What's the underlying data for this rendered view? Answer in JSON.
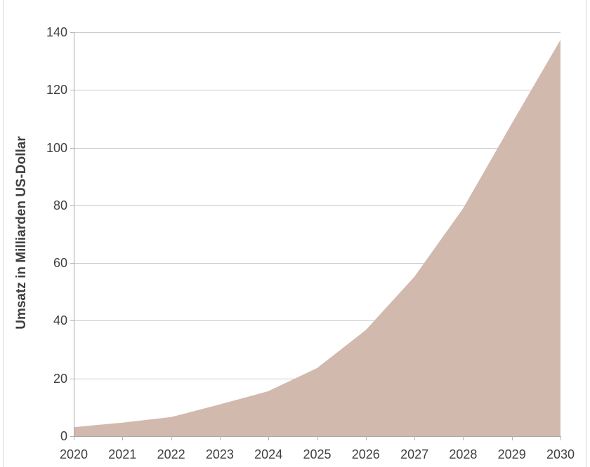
{
  "chart_data": {
    "type": "area",
    "title": "",
    "xlabel": "",
    "ylabel": "Umsatz in Milliarden US-Dollar",
    "x": [
      2020,
      2021,
      2022,
      2023,
      2024,
      2025,
      2026,
      2027,
      2028,
      2029,
      2030
    ],
    "values": [
      3.1,
      4.7,
      6.6,
      11.0,
      15.6,
      23.6,
      36.8,
      55.3,
      79.0,
      108.4,
      137.4
    ],
    "ylim": [
      0,
      140
    ],
    "yticks": [
      0,
      20,
      40,
      60,
      80,
      100,
      120,
      140
    ],
    "grid": "horizontal",
    "legend": "none",
    "series_name": "Umsatz",
    "fill_color": "#d2b9ae",
    "grid_color": "#c9c9c9",
    "axis_color": "#a8a8a8",
    "tick_color": "#b4b4b4",
    "text_color": "#404040",
    "frame_color": "#d6d6d6",
    "background_color": "#ffffff"
  }
}
